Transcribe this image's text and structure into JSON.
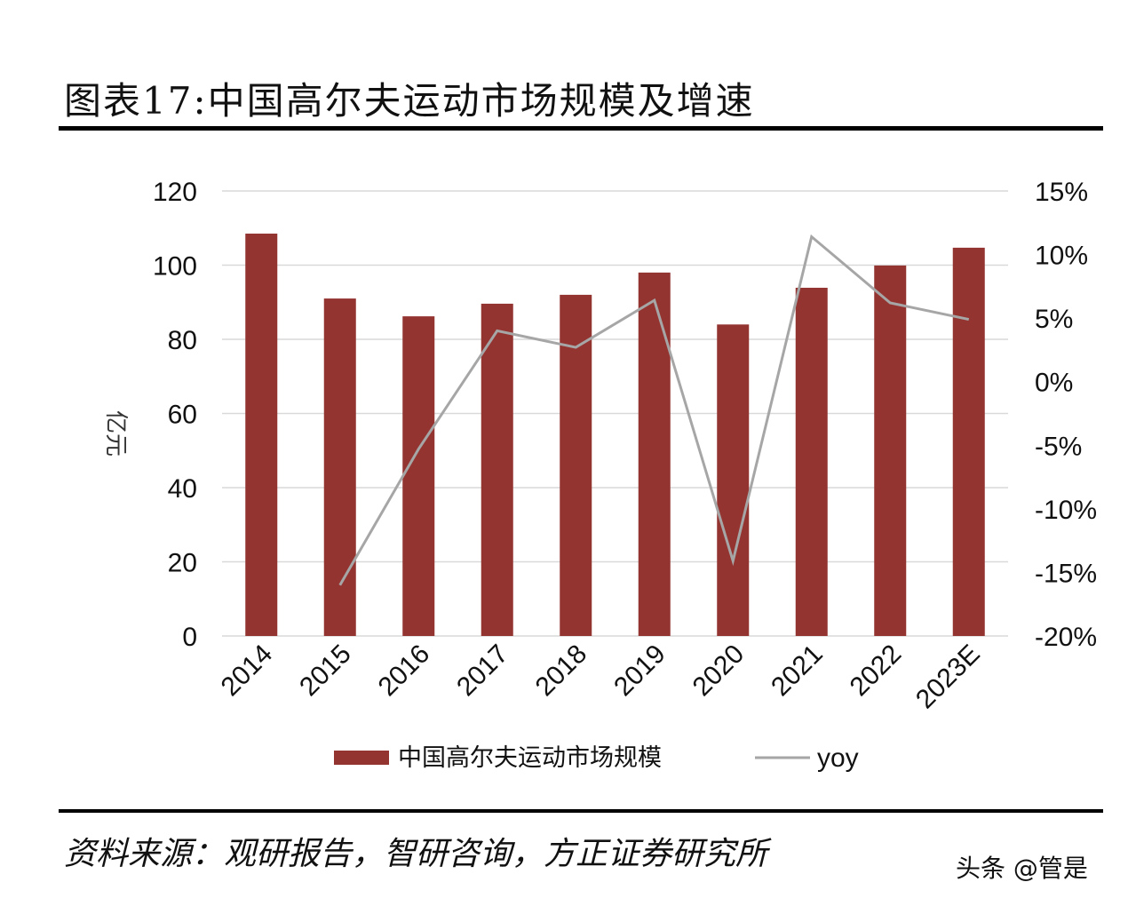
{
  "title": "图表17:中国高尔夫运动市场规模及增速",
  "source": "资料来源：观研报告，智研咨询，方正证券研究所",
  "watermark": "头条 @管是",
  "chart_data": {
    "type": "bar+line",
    "categories": [
      "2014",
      "2015",
      "2016",
      "2017",
      "2018",
      "2019",
      "2020",
      "2021",
      "2022",
      "2023E"
    ],
    "series": [
      {
        "name": "中国高尔夫运动市场规模",
        "type": "bar",
        "axis": "left",
        "color": "#943431",
        "values": [
          108.5,
          91,
          86.2,
          89.6,
          92,
          98,
          84,
          93.9,
          99.9,
          104.7
        ]
      },
      {
        "name": "yoy",
        "type": "line",
        "axis": "right",
        "color": "#a6a6a6",
        "values": [
          null,
          -16.0,
          -5.3,
          4.0,
          2.7,
          6.4,
          -14.1,
          11.4,
          6.2,
          4.9
        ]
      }
    ],
    "ylabel": "亿元",
    "ylim": [
      0,
      120
    ],
    "yticks": [
      "0",
      "20",
      "40",
      "60",
      "80",
      "100",
      "120"
    ],
    "y2lim": [
      -20,
      15
    ],
    "y2ticks": [
      "-20%",
      "-15%",
      "-10%",
      "-5%",
      "0%",
      "5%",
      "10%",
      "15%"
    ],
    "grid": true,
    "legend": "bottom"
  }
}
